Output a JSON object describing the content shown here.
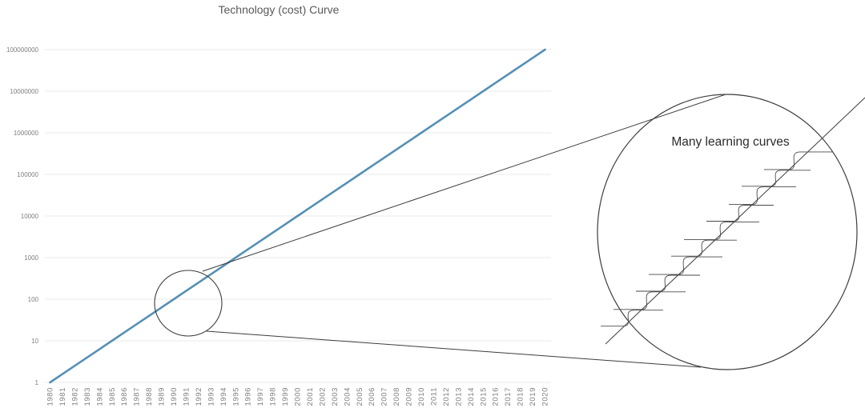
{
  "chart": {
    "title": "Technology (cost) Curve",
    "annotation_label": "Many learning curves"
  },
  "colors": {
    "background": "#ffffff",
    "title_text": "#595959",
    "axis_text": "#7f7f7f",
    "gridline": "#e8e8e8",
    "trend_line": "#5590B4",
    "callout_stroke": "#3d3d3d",
    "learning_curve_stroke": "#4a4a4a",
    "annotation_text": "#2b2b2b"
  },
  "chart_data": {
    "type": "line",
    "title": "Technology (cost) Curve",
    "x": [
      1980,
      1981,
      1982,
      1983,
      1984,
      1985,
      1986,
      1987,
      1988,
      1989,
      1990,
      1991,
      1992,
      1993,
      1994,
      1995,
      1996,
      1997,
      1998,
      1999,
      2000,
      2001,
      2002,
      2003,
      2004,
      2005,
      2006,
      2007,
      2008,
      2009,
      2010,
      2011,
      2012,
      2013,
      2014,
      2015,
      2016,
      2017,
      2018,
      2019,
      2020
    ],
    "series": [
      {
        "name": "Technology (cost) Curve",
        "values": [
          1,
          1.585,
          2.512,
          3.981,
          6.31,
          10,
          15.85,
          25.12,
          39.81,
          63.1,
          100,
          158.5,
          251.2,
          398.1,
          631,
          1000,
          1585,
          2512,
          3981,
          6310,
          10000,
          15849,
          25119,
          39811,
          63096,
          100000,
          158489,
          251189,
          398107,
          630957,
          1000000,
          1584893,
          2511886,
          3981072,
          6309573,
          10000000,
          15848932,
          25118864,
          39810717,
          63095734,
          100000000
        ]
      }
    ],
    "xlabel": "",
    "ylabel": "",
    "y_scale": "log",
    "ylim": [
      1,
      100000000
    ],
    "y_ticks": [
      1,
      10,
      100,
      1000,
      10000,
      100000,
      1000000,
      10000000,
      100000000
    ],
    "y_tick_labels": [
      "1",
      "10",
      "100",
      "1000",
      "10000",
      "100000",
      "1000000",
      "10000000",
      "100000000"
    ],
    "grid": "horizontal",
    "legend": "none",
    "annotations": [
      {
        "type": "magnifier-callout",
        "label": "Many learning curves",
        "curve_count": 10,
        "detail": "zoom circle showing ~10 overlapping S-shaped learning curves braided along the straight log-scale trend line"
      }
    ]
  }
}
